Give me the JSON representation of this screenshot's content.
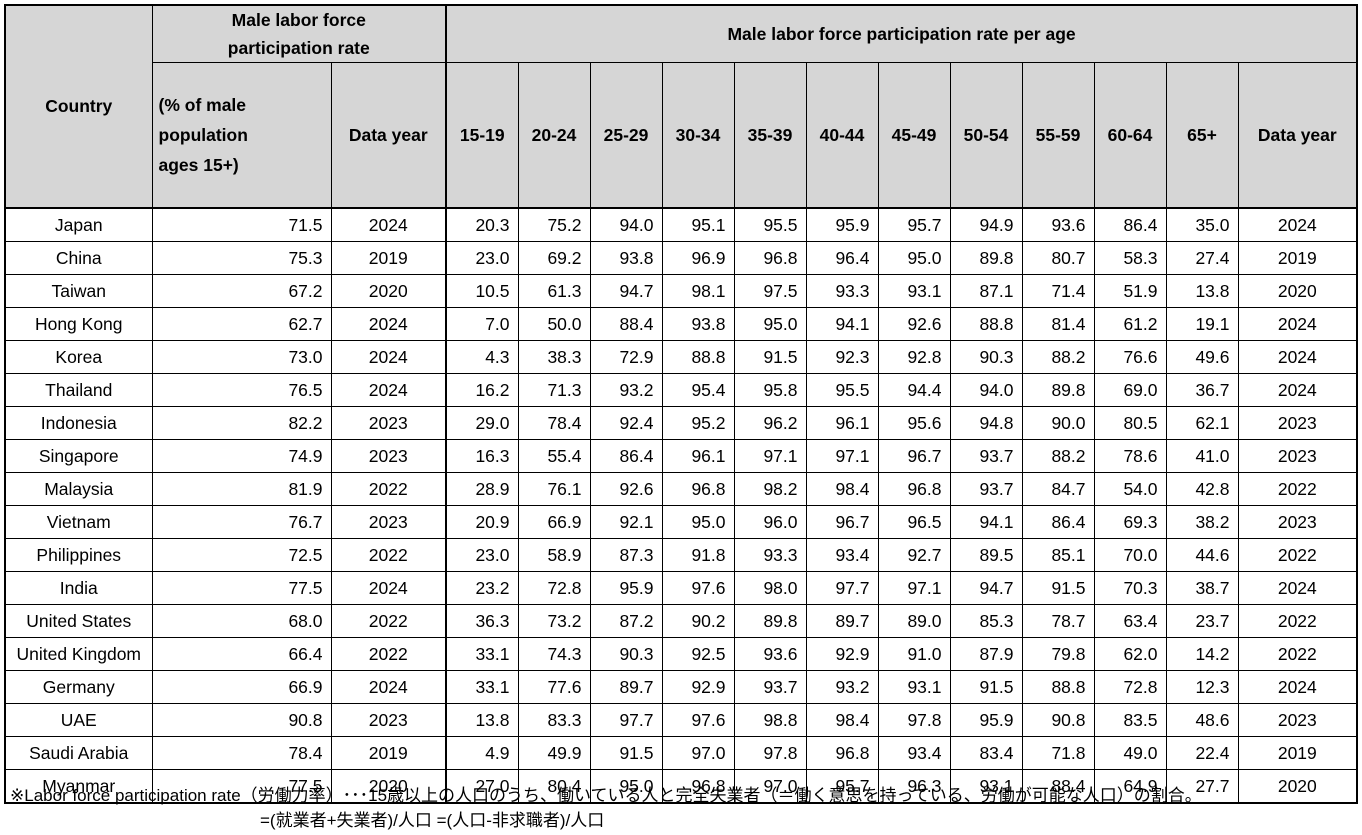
{
  "chart_data": {
    "type": "table",
    "header": {
      "country": "Country",
      "group1_title": "Male labor force participation rate",
      "group1_lines": [
        "Male labor force",
        "participation rate"
      ],
      "group2_title": "Male labor force participation rate per age",
      "pct_label": "(% of male population ages 15+)",
      "pct_lines": [
        "(% of male",
        "population",
        "ages 15+)"
      ],
      "data_year_label": "Data year",
      "age_cols": [
        "15-19",
        "20-24",
        "25-29",
        "30-34",
        "35-39",
        "40-44",
        "45-49",
        "50-54",
        "55-59",
        "60-64",
        "65+"
      ],
      "age_data_year_label": "Data year"
    },
    "rows": [
      {
        "country": "Japan",
        "rate": "71.5",
        "year": "2024",
        "ages": [
          "20.3",
          "75.2",
          "94.0",
          "95.1",
          "95.5",
          "95.9",
          "95.7",
          "94.9",
          "93.6",
          "86.4",
          "35.0"
        ],
        "age_year": "2024"
      },
      {
        "country": "China",
        "rate": "75.3",
        "year": "2019",
        "ages": [
          "23.0",
          "69.2",
          "93.8",
          "96.9",
          "96.8",
          "96.4",
          "95.0",
          "89.8",
          "80.7",
          "58.3",
          "27.4"
        ],
        "age_year": "2019"
      },
      {
        "country": "Taiwan",
        "rate": "67.2",
        "year": "2020",
        "ages": [
          "10.5",
          "61.3",
          "94.7",
          "98.1",
          "97.5",
          "93.3",
          "93.1",
          "87.1",
          "71.4",
          "51.9",
          "13.8"
        ],
        "age_year": "2020"
      },
      {
        "country": "Hong Kong",
        "rate": "62.7",
        "year": "2024",
        "ages": [
          "7.0",
          "50.0",
          "88.4",
          "93.8",
          "95.0",
          "94.1",
          "92.6",
          "88.8",
          "81.4",
          "61.2",
          "19.1"
        ],
        "age_year": "2024"
      },
      {
        "country": "Korea",
        "rate": "73.0",
        "year": "2024",
        "ages": [
          "4.3",
          "38.3",
          "72.9",
          "88.8",
          "91.5",
          "92.3",
          "92.8",
          "90.3",
          "88.2",
          "76.6",
          "49.6"
        ],
        "age_year": "2024"
      },
      {
        "country": "Thailand",
        "rate": "76.5",
        "year": "2024",
        "ages": [
          "16.2",
          "71.3",
          "93.2",
          "95.4",
          "95.8",
          "95.5",
          "94.4",
          "94.0",
          "89.8",
          "69.0",
          "36.7"
        ],
        "age_year": "2024"
      },
      {
        "country": "Indonesia",
        "rate": "82.2",
        "year": "2023",
        "ages": [
          "29.0",
          "78.4",
          "92.4",
          "95.2",
          "96.2",
          "96.1",
          "95.6",
          "94.8",
          "90.0",
          "80.5",
          "62.1"
        ],
        "age_year": "2023"
      },
      {
        "country": "Singapore",
        "rate": "74.9",
        "year": "2023",
        "ages": [
          "16.3",
          "55.4",
          "86.4",
          "96.1",
          "97.1",
          "97.1",
          "96.7",
          "93.7",
          "88.2",
          "78.6",
          "41.0"
        ],
        "age_year": "2023"
      },
      {
        "country": "Malaysia",
        "rate": "81.9",
        "year": "2022",
        "ages": [
          "28.9",
          "76.1",
          "92.6",
          "96.8",
          "98.2",
          "98.4",
          "96.8",
          "93.7",
          "84.7",
          "54.0",
          "42.8"
        ],
        "age_year": "2022"
      },
      {
        "country": "Vietnam",
        "rate": "76.7",
        "year": "2023",
        "ages": [
          "20.9",
          "66.9",
          "92.1",
          "95.0",
          "96.0",
          "96.7",
          "96.5",
          "94.1",
          "86.4",
          "69.3",
          "38.2"
        ],
        "age_year": "2023"
      },
      {
        "country": "Philippines",
        "rate": "72.5",
        "year": "2022",
        "ages": [
          "23.0",
          "58.9",
          "87.3",
          "91.8",
          "93.3",
          "93.4",
          "92.7",
          "89.5",
          "85.1",
          "70.0",
          "44.6"
        ],
        "age_year": "2022"
      },
      {
        "country": "India",
        "rate": "77.5",
        "year": "2024",
        "ages": [
          "23.2",
          "72.8",
          "95.9",
          "97.6",
          "98.0",
          "97.7",
          "97.1",
          "94.7",
          "91.5",
          "70.3",
          "38.7"
        ],
        "age_year": "2024"
      },
      {
        "country": "United States",
        "rate": "68.0",
        "year": "2022",
        "ages": [
          "36.3",
          "73.2",
          "87.2",
          "90.2",
          "89.8",
          "89.7",
          "89.0",
          "85.3",
          "78.7",
          "63.4",
          "23.7"
        ],
        "age_year": "2022"
      },
      {
        "country": "United Kingdom",
        "rate": "66.4",
        "year": "2022",
        "ages": [
          "33.1",
          "74.3",
          "90.3",
          "92.5",
          "93.6",
          "92.9",
          "91.0",
          "87.9",
          "79.8",
          "62.0",
          "14.2"
        ],
        "age_year": "2022"
      },
      {
        "country": "Germany",
        "rate": "66.9",
        "year": "2024",
        "ages": [
          "33.1",
          "77.6",
          "89.7",
          "92.9",
          "93.7",
          "93.2",
          "93.1",
          "91.5",
          "88.8",
          "72.8",
          "12.3"
        ],
        "age_year": "2024"
      },
      {
        "country": "UAE",
        "rate": "90.8",
        "year": "2023",
        "ages": [
          "13.8",
          "83.3",
          "97.7",
          "97.6",
          "98.8",
          "98.4",
          "97.8",
          "95.9",
          "90.8",
          "83.5",
          "48.6"
        ],
        "age_year": "2023"
      },
      {
        "country": "Saudi Arabia",
        "rate": "78.4",
        "year": "2019",
        "ages": [
          "4.9",
          "49.9",
          "91.5",
          "97.0",
          "97.8",
          "96.8",
          "93.4",
          "83.4",
          "71.8",
          "49.0",
          "22.4"
        ],
        "age_year": "2019"
      },
      {
        "country": "Myanmar",
        "rate": "77.5",
        "year": "2020",
        "ages": [
          "27.0",
          "80.4",
          "95.0",
          "96.8",
          "97.0",
          "95.7",
          "96.3",
          "93.1",
          "88.4",
          "64.9",
          "27.7"
        ],
        "age_year": "2020"
      }
    ]
  },
  "footnote": {
    "line1": "※Labor force participation rate（労働力率）･･･15歳以上の人口のうち、働いている人と完全失業者（＝働く意思を持っている、労働が可能な人口）の割合。",
    "line2": "=(就業者+失業者)/人口 =(人口-非求職者)/人口"
  },
  "colors": {
    "header_bg": "#d6d6d6",
    "border": "#000000",
    "background": "#ffffff"
  }
}
